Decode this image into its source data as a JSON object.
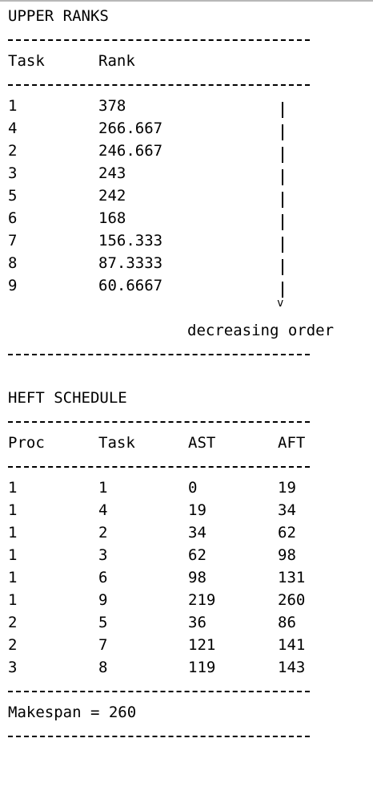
{
  "upper_ranks": {
    "title": "UPPER RANKS",
    "headers": [
      "Task",
      "Rank"
    ],
    "rows": [
      {
        "task": "1",
        "rank": "378"
      },
      {
        "task": "4",
        "rank": "266.667"
      },
      {
        "task": "2",
        "rank": "246.667"
      },
      {
        "task": "3",
        "rank": "243"
      },
      {
        "task": "5",
        "rank": "242"
      },
      {
        "task": "6",
        "rank": "168"
      },
      {
        "task": "7",
        "rank": "156.333"
      },
      {
        "task": "8",
        "rank": "87.3333"
      },
      {
        "task": "9",
        "rank": "60.6667"
      }
    ],
    "arrow_head": "v",
    "order_note": "decreasing order"
  },
  "heft_schedule": {
    "title": "HEFT SCHEDULE",
    "headers": [
      "Proc",
      "Task",
      "AST",
      "AFT"
    ],
    "rows": [
      {
        "proc": "1",
        "task": "1",
        "ast": "0",
        "aft": "19"
      },
      {
        "proc": "1",
        "task": "4",
        "ast": "19",
        "aft": "34"
      },
      {
        "proc": "1",
        "task": "2",
        "ast": "34",
        "aft": "62"
      },
      {
        "proc": "1",
        "task": "3",
        "ast": "62",
        "aft": "98"
      },
      {
        "proc": "1",
        "task": "6",
        "ast": "98",
        "aft": "131"
      },
      {
        "proc": "1",
        "task": "9",
        "ast": "219",
        "aft": "260"
      },
      {
        "proc": "2",
        "task": "5",
        "ast": "36",
        "aft": "86"
      },
      {
        "proc": "2",
        "task": "7",
        "ast": "121",
        "aft": "141"
      },
      {
        "proc": "3",
        "task": "8",
        "ast": "119",
        "aft": "143"
      }
    ],
    "makespan": "Makespan = 260"
  }
}
